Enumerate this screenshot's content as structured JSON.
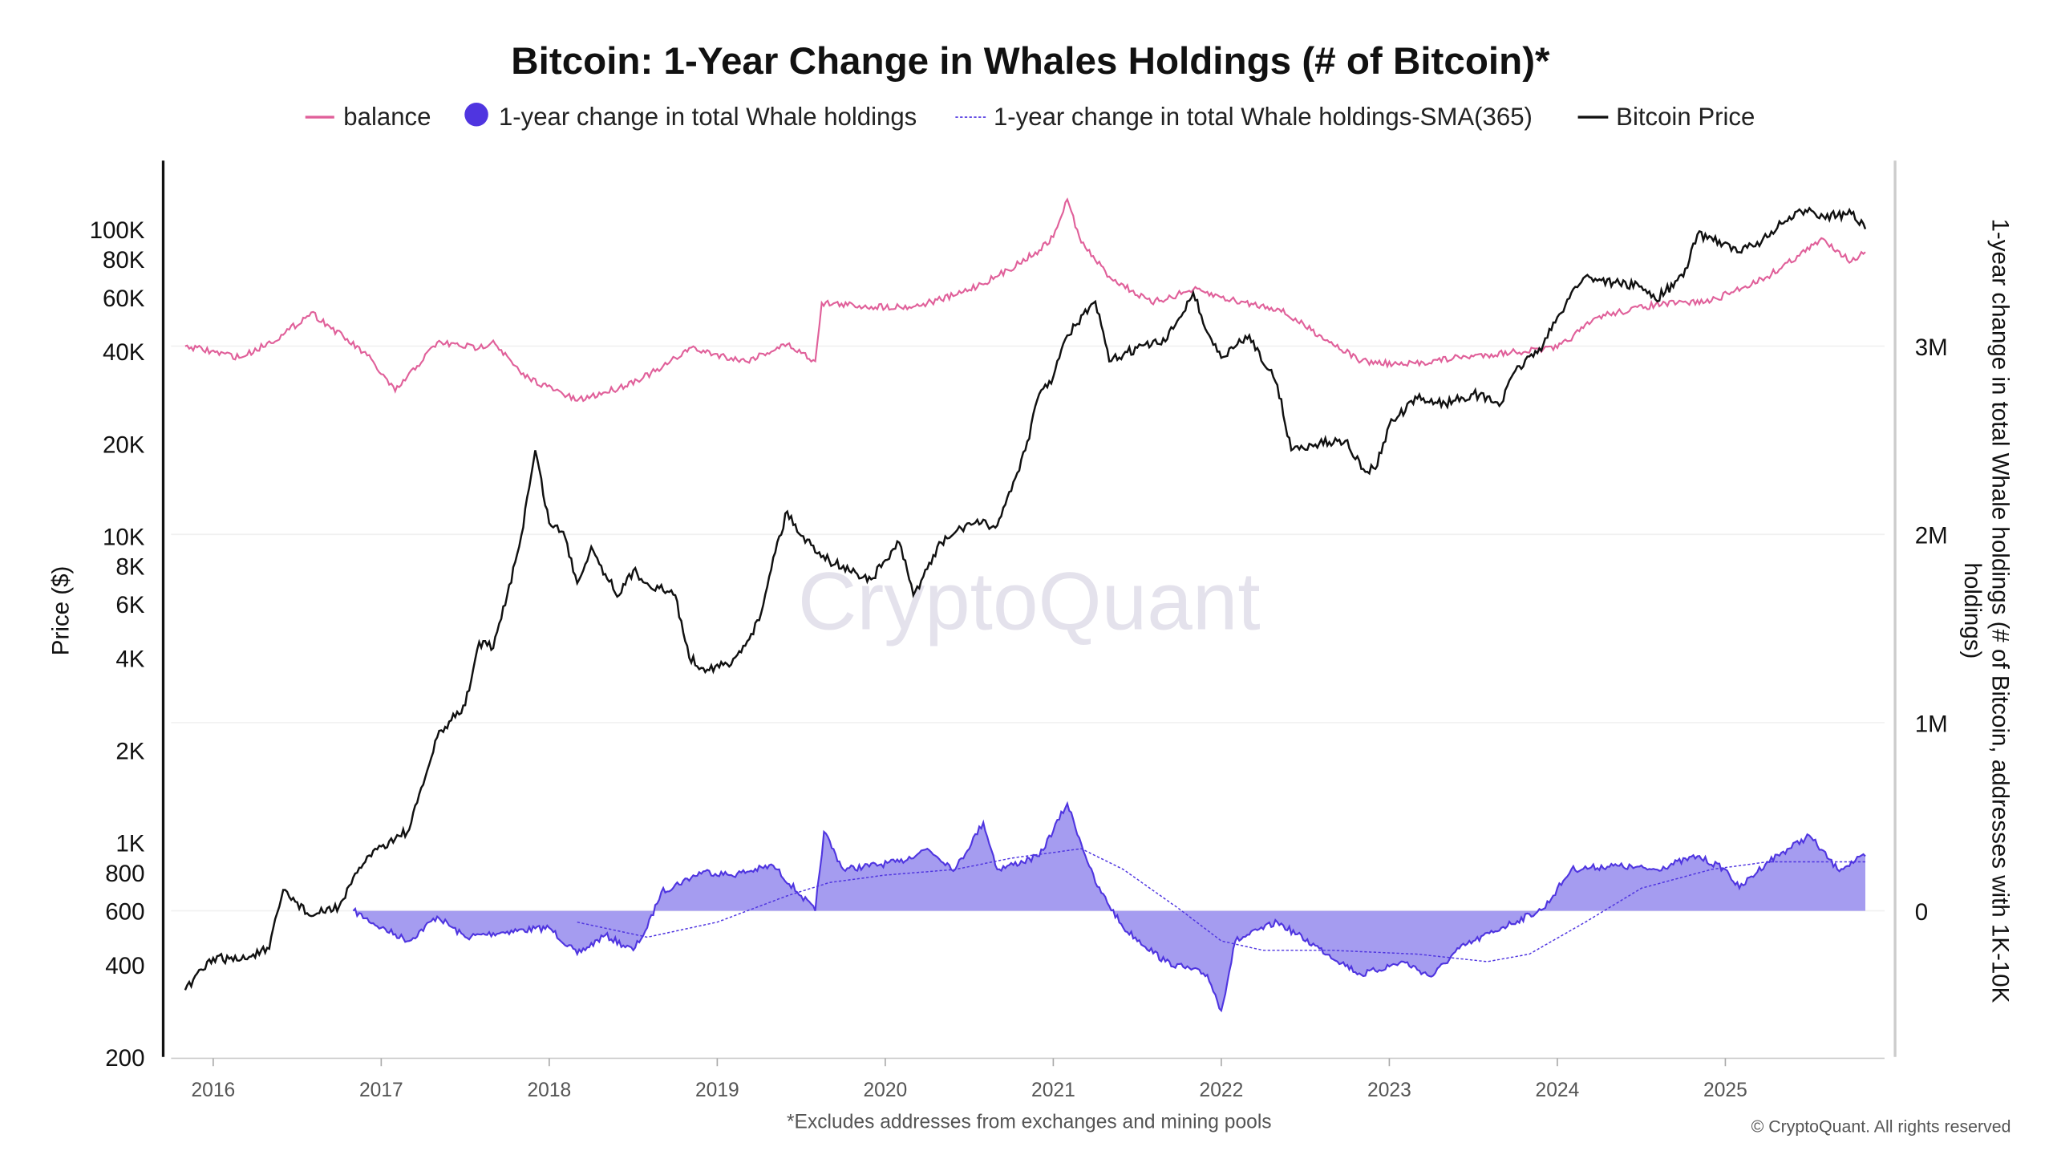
{
  "title": "Bitcoin: 1-Year Change in Whales Holdings (# of Bitcoin)*",
  "footnote": "*Excludes addresses from exchanges and mining pools",
  "copyright": "© CryptoQuant. All rights reserved",
  "watermark": "CryptoQuant",
  "legend": [
    {
      "label": "balance",
      "color": "#e0609a",
      "marker": "line"
    },
    {
      "label": "1-year change in total Whale holdings",
      "color": "#4f35e0",
      "marker": "circle"
    },
    {
      "label": "1-year change in total Whale holdings-SMA(365)",
      "color": "#4f35e0",
      "marker": "dashed-line"
    },
    {
      "label": "Bitcoin Price",
      "color": "#111111",
      "marker": "line"
    }
  ],
  "chart_data": {
    "type": "line",
    "title": "Bitcoin: 1-Year Change in Whales Holdings (# of Bitcoin)*",
    "xlabel": "",
    "x_ticks": [
      "2016",
      "2017",
      "2018",
      "2019",
      "2020",
      "2021",
      "2022",
      "2023",
      "2024",
      "2025"
    ],
    "y_left": {
      "label": "Price ($)",
      "scale": "log",
      "range": [
        200,
        160000
      ],
      "ticks": [
        {
          "v": 200,
          "t": "200"
        },
        {
          "v": 400,
          "t": "400"
        },
        {
          "v": 600,
          "t": "600"
        },
        {
          "v": 800,
          "t": "800"
        },
        {
          "v": 1000,
          "t": "1K"
        },
        {
          "v": 2000,
          "t": "2K"
        },
        {
          "v": 4000,
          "t": "4K"
        },
        {
          "v": 6000,
          "t": "6K"
        },
        {
          "v": 8000,
          "t": "8K"
        },
        {
          "v": 10000,
          "t": "10K"
        },
        {
          "v": 20000,
          "t": "20K"
        },
        {
          "v": 40000,
          "t": "40K"
        },
        {
          "v": 60000,
          "t": "60K"
        },
        {
          "v": 80000,
          "t": "80K"
        },
        {
          "v": 100000,
          "t": "100K"
        }
      ]
    },
    "y_right": {
      "label": "1-year change in total Whale holdings (# of Bitcoin, addresses with 1K-10K holdings)",
      "scale": "linear",
      "range": [
        -0.78,
        3.98
      ],
      "ticks": [
        {
          "v": 0,
          "t": "0"
        },
        {
          "v": 1,
          "t": "1M"
        },
        {
          "v": 2,
          "t": "2M"
        },
        {
          "v": 3,
          "t": "3M"
        }
      ]
    },
    "grid": true,
    "legend_position": "top",
    "series": [
      {
        "name": "Bitcoin Price",
        "axis": "left",
        "color": "#111111",
        "points": [
          [
            "2015-11",
            330
          ],
          [
            "2016-01",
            420
          ],
          [
            "2016-03",
            415
          ],
          [
            "2016-05",
            450
          ],
          [
            "2016-06",
            700
          ],
          [
            "2016-08",
            575
          ],
          [
            "2016-10",
            620
          ],
          [
            "2016-12",
            900
          ],
          [
            "2017-01",
            970
          ],
          [
            "2017-03",
            1100
          ],
          [
            "2017-05",
            2200
          ],
          [
            "2017-06",
            2500
          ],
          [
            "2017-07",
            2800
          ],
          [
            "2017-08",
            4500
          ],
          [
            "2017-09",
            4300
          ],
          [
            "2017-10",
            6400
          ],
          [
            "2017-11",
            10000
          ],
          [
            "2017-12",
            19000
          ],
          [
            "2018-01",
            11000
          ],
          [
            "2018-02",
            10300
          ],
          [
            "2018-03",
            7000
          ],
          [
            "2018-04",
            9200
          ],
          [
            "2018-05",
            7500
          ],
          [
            "2018-06",
            6400
          ],
          [
            "2018-07",
            7700
          ],
          [
            "2018-08",
            7000
          ],
          [
            "2018-10",
            6400
          ],
          [
            "2018-11",
            4000
          ],
          [
            "2018-12",
            3700
          ],
          [
            "2019-02",
            3800
          ],
          [
            "2019-04",
            5300
          ],
          [
            "2019-05",
            8500
          ],
          [
            "2019-06",
            12000
          ],
          [
            "2019-07",
            10000
          ],
          [
            "2019-09",
            8300
          ],
          [
            "2019-11",
            7500
          ],
          [
            "2019-12",
            7200
          ],
          [
            "2020-02",
            9500
          ],
          [
            "2020-03",
            6400
          ],
          [
            "2020-05",
            9500
          ],
          [
            "2020-07",
            11000
          ],
          [
            "2020-09",
            10800
          ],
          [
            "2020-11",
            19000
          ],
          [
            "2020-12",
            29000
          ],
          [
            "2021-01",
            33000
          ],
          [
            "2021-02",
            45000
          ],
          [
            "2021-04",
            58000
          ],
          [
            "2021-05",
            37000
          ],
          [
            "2021-07",
            41000
          ],
          [
            "2021-09",
            43000
          ],
          [
            "2021-11",
            62000
          ],
          [
            "2021-12",
            46000
          ],
          [
            "2022-01",
            38000
          ],
          [
            "2022-03",
            45000
          ],
          [
            "2022-05",
            31000
          ],
          [
            "2022-06",
            19000
          ],
          [
            "2022-08",
            20000
          ],
          [
            "2022-10",
            20500
          ],
          [
            "2022-11",
            16500
          ],
          [
            "2022-12",
            16500
          ],
          [
            "2023-01",
            23000
          ],
          [
            "2023-03",
            28000
          ],
          [
            "2023-05",
            27000
          ],
          [
            "2023-07",
            29000
          ],
          [
            "2023-09",
            27000
          ],
          [
            "2023-10",
            34500
          ],
          [
            "2023-12",
            42000
          ],
          [
            "2024-02",
            62000
          ],
          [
            "2024-03",
            70000
          ],
          [
            "2024-05",
            67000
          ],
          [
            "2024-07",
            65000
          ],
          [
            "2024-08",
            59000
          ],
          [
            "2024-10",
            70000
          ],
          [
            "2024-11",
            96000
          ],
          [
            "2024-12",
            94000
          ],
          [
            "2025-02",
            84000
          ],
          [
            "2025-04",
            94000
          ],
          [
            "2025-05",
            104000
          ],
          [
            "2025-07",
            117000
          ],
          [
            "2025-08",
            110000
          ],
          [
            "2025-10",
            112000
          ],
          [
            "2025-11",
            100000
          ]
        ]
      },
      {
        "name": "balance",
        "axis": "right",
        "color": "#e0609a",
        "points": [
          [
            "2015-11",
            3.0
          ],
          [
            "2016-03",
            2.94
          ],
          [
            "2016-06",
            3.06
          ],
          [
            "2016-08",
            3.18
          ],
          [
            "2016-12",
            2.95
          ],
          [
            "2017-02",
            2.76
          ],
          [
            "2017-05",
            3.02
          ],
          [
            "2017-08",
            2.99
          ],
          [
            "2017-09",
            3.03
          ],
          [
            "2017-11",
            2.85
          ],
          [
            "2018-03",
            2.71
          ],
          [
            "2018-06",
            2.78
          ],
          [
            "2018-09",
            2.88
          ],
          [
            "2018-11",
            2.99
          ],
          [
            "2019-03",
            2.92
          ],
          [
            "2019-06",
            3.01
          ],
          [
            "2019-08",
            2.92
          ],
          [
            "2019-08-15",
            3.23
          ],
          [
            "2019-12",
            3.21
          ],
          [
            "2020-03",
            3.21
          ],
          [
            "2020-06",
            3.27
          ],
          [
            "2020-09",
            3.37
          ],
          [
            "2020-12",
            3.51
          ],
          [
            "2021-01",
            3.58
          ],
          [
            "2021-02",
            3.78
          ],
          [
            "2021-03",
            3.55
          ],
          [
            "2021-05",
            3.37
          ],
          [
            "2021-08",
            3.23
          ],
          [
            "2021-11",
            3.3
          ],
          [
            "2022-02",
            3.24
          ],
          [
            "2022-05",
            3.2
          ],
          [
            "2022-08",
            3.06
          ],
          [
            "2022-11",
            2.92
          ],
          [
            "2023-02",
            2.9
          ],
          [
            "2023-06",
            2.94
          ],
          [
            "2023-10",
            2.97
          ],
          [
            "2024-01",
            2.99
          ],
          [
            "2024-04",
            3.16
          ],
          [
            "2024-08",
            3.22
          ],
          [
            "2024-12",
            3.24
          ],
          [
            "2025-04",
            3.37
          ],
          [
            "2025-08",
            3.57
          ],
          [
            "2025-09",
            3.51
          ],
          [
            "2025-10",
            3.45
          ],
          [
            "2025-11",
            3.5
          ]
        ]
      },
      {
        "name": "1-year change in total Whale holdings",
        "axis": "right",
        "color": "#4f35e0",
        "fill": "#a59cf0",
        "points": [
          [
            "2016-11",
            0.0
          ],
          [
            "2017-01",
            -0.09
          ],
          [
            "2017-03",
            -0.16
          ],
          [
            "2017-05",
            -0.03
          ],
          [
            "2017-07",
            -0.14
          ],
          [
            "2017-10",
            -0.11
          ],
          [
            "2018-01",
            -0.09
          ],
          [
            "2018-03",
            -0.23
          ],
          [
            "2018-05",
            -0.13
          ],
          [
            "2018-07",
            -0.21
          ],
          [
            "2018-08",
            -0.09
          ],
          [
            "2018-09",
            0.1
          ],
          [
            "2018-12",
            0.21
          ],
          [
            "2019-02",
            0.19
          ],
          [
            "2019-05",
            0.24
          ],
          [
            "2019-07",
            0.08
          ],
          [
            "2019-08",
            0.0
          ],
          [
            "2019-08-20",
            0.42
          ],
          [
            "2019-10",
            0.22
          ],
          [
            "2020-02",
            0.26
          ],
          [
            "2020-04",
            0.33
          ],
          [
            "2020-06",
            0.22
          ],
          [
            "2020-08",
            0.47
          ],
          [
            "2020-09",
            0.22
          ],
          [
            "2020-12",
            0.29
          ],
          [
            "2021-02",
            0.57
          ],
          [
            "2021-04",
            0.15
          ],
          [
            "2021-06",
            -0.09
          ],
          [
            "2021-09",
            -0.27
          ],
          [
            "2021-12",
            -0.34
          ],
          [
            "2022-01",
            -0.53
          ],
          [
            "2022-02",
            -0.16
          ],
          [
            "2022-05",
            -0.06
          ],
          [
            "2022-08",
            -0.2
          ],
          [
            "2022-11",
            -0.34
          ],
          [
            "2023-02",
            -0.27
          ],
          [
            "2023-04",
            -0.35
          ],
          [
            "2023-06",
            -0.2
          ],
          [
            "2023-09",
            -0.09
          ],
          [
            "2023-12",
            0.01
          ],
          [
            "2024-02",
            0.22
          ],
          [
            "2024-05",
            0.24
          ],
          [
            "2024-08",
            0.22
          ],
          [
            "2024-11",
            0.29
          ],
          [
            "2025-01",
            0.22
          ],
          [
            "2025-02",
            0.12
          ],
          [
            "2025-04",
            0.26
          ],
          [
            "2025-07",
            0.4
          ],
          [
            "2025-09",
            0.22
          ],
          [
            "2025-11",
            0.29
          ]
        ]
      },
      {
        "name": "1-year change in total Whale holdings-SMA(365)",
        "axis": "right",
        "color": "#4f35e0",
        "dashed": true,
        "points": [
          [
            "2018-03",
            -0.06
          ],
          [
            "2018-08",
            -0.14
          ],
          [
            "2019-01",
            -0.06
          ],
          [
            "2019-06",
            0.08
          ],
          [
            "2019-09",
            0.15
          ],
          [
            "2020-01",
            0.19
          ],
          [
            "2020-06",
            0.22
          ],
          [
            "2020-10",
            0.28
          ],
          [
            "2021-03",
            0.33
          ],
          [
            "2021-06",
            0.22
          ],
          [
            "2021-10",
            0.01
          ],
          [
            "2022-01",
            -0.16
          ],
          [
            "2022-04",
            -0.21
          ],
          [
            "2022-09",
            -0.21
          ],
          [
            "2023-03",
            -0.23
          ],
          [
            "2023-08",
            -0.27
          ],
          [
            "2023-11",
            -0.23
          ],
          [
            "2024-03",
            -0.06
          ],
          [
            "2024-07",
            0.12
          ],
          [
            "2024-12",
            0.22
          ],
          [
            "2025-04",
            0.26
          ],
          [
            "2025-11",
            0.26
          ]
        ]
      }
    ]
  }
}
